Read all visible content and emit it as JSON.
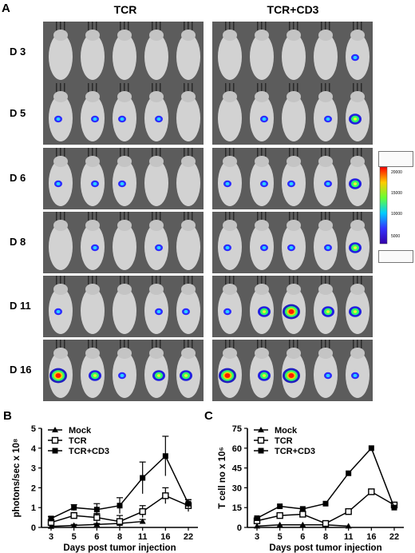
{
  "panel_labels": {
    "a": "A",
    "b": "B",
    "c": "C"
  },
  "imaging": {
    "groups": [
      "TCR",
      "TCR+CD3"
    ],
    "days": [
      "D 3",
      "D 5",
      "D 6",
      "D 8",
      "D 11",
      "D 16"
    ],
    "colors": {
      "background": "#5c5c5c",
      "mouse": "#d2d2d2",
      "cage_bar": "#2a2a2a"
    },
    "signals": [
      [
        [
          0,
          0,
          0,
          0,
          0
        ],
        [
          0,
          0,
          0,
          0,
          1
        ]
      ],
      [
        [
          1,
          1,
          1,
          1,
          0
        ],
        [
          0,
          1,
          0,
          1,
          2
        ]
      ],
      [
        [
          1,
          1,
          1,
          0,
          0
        ],
        [
          1,
          1,
          1,
          1,
          2
        ]
      ],
      [
        [
          0,
          1,
          0,
          1,
          0
        ],
        [
          1,
          1,
          1,
          1,
          2
        ]
      ],
      [
        [
          1,
          0,
          0,
          1,
          1
        ],
        [
          1,
          2,
          3,
          2,
          2
        ]
      ],
      [
        [
          3,
          2,
          1,
          2,
          2
        ],
        [
          3,
          2,
          3,
          1,
          1
        ]
      ]
    ],
    "scale_labels": [
      "20000",
      "15000",
      "10000",
      "5000"
    ]
  },
  "chart_data": [
    {
      "type": "line",
      "panel": "B",
      "x": [
        3,
        5,
        6,
        8,
        11,
        16,
        22
      ],
      "xlabel": "Days post tumor injection",
      "ylabel": "photons/sec x 10⁸",
      "ylim": [
        0,
        5
      ],
      "yticks": [
        0,
        1,
        2,
        3,
        4,
        5
      ],
      "legend": "top-left",
      "series": [
        {
          "name": "Mock",
          "marker": "triangle-filled",
          "values": [
            0.05,
            0.1,
            0.15,
            0.2,
            0.3,
            null,
            null
          ],
          "error": [
            0.05,
            0.05,
            0.05,
            0.05,
            0.1,
            null,
            null
          ]
        },
        {
          "name": "TCR",
          "marker": "square-open",
          "values": [
            0.25,
            0.6,
            0.5,
            0.3,
            0.8,
            1.6,
            1.1
          ],
          "error": [
            0.1,
            0.15,
            0.2,
            0.3,
            0.3,
            0.4,
            0.3
          ]
        },
        {
          "name": "TCR+CD3",
          "marker": "square-filled",
          "values": [
            0.45,
            1.0,
            0.9,
            1.1,
            2.5,
            3.6,
            1.2
          ],
          "error": [
            0.1,
            0.15,
            0.3,
            0.4,
            0.8,
            1.0,
            0.2
          ]
        }
      ]
    },
    {
      "type": "line",
      "panel": "C",
      "x": [
        3,
        5,
        6,
        8,
        11,
        16,
        22
      ],
      "xlabel": "Days post tumor injection",
      "ylabel": "T cell no x 10⁶",
      "ylim": [
        0,
        75
      ],
      "yticks": [
        0,
        15,
        30,
        45,
        60,
        75
      ],
      "legend": "top-left",
      "series": [
        {
          "name": "Mock",
          "marker": "triangle-filled",
          "values": [
            1,
            2,
            2,
            2,
            1,
            null,
            null
          ]
        },
        {
          "name": "TCR",
          "marker": "square-open",
          "values": [
            5,
            9,
            10,
            3,
            12,
            27,
            17
          ]
        },
        {
          "name": "TCR+CD3",
          "marker": "square-filled",
          "values": [
            7,
            16,
            14,
            18,
            41,
            60,
            15
          ]
        }
      ]
    }
  ]
}
